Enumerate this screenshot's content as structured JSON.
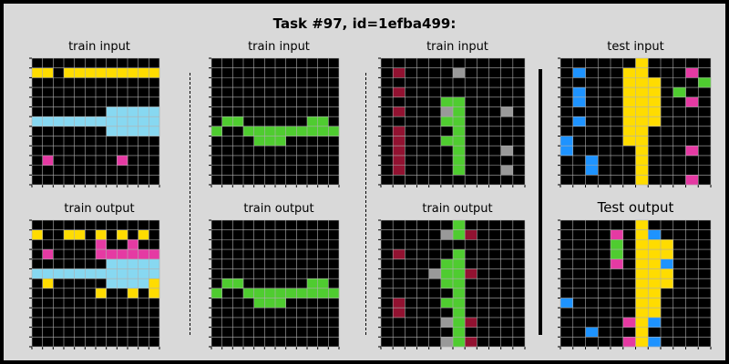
{
  "title": "Task #97, id=1efba499:",
  "colors": {
    "0": "#000000",
    "1": "#1E93FF",
    "2": "#F93C31",
    "3": "#4FCC30",
    "4": "#FFDC00",
    "5": "#999999",
    "6": "#E53AA3",
    "7": "#FF851B",
    "8": "#87D8F1",
    "9": "#921231",
    "grid_line": "#b0b0b0",
    "background": "#d9d9d9"
  },
  "panels": [
    {
      "label": "train input",
      "rows": [
        "000000000000",
        "440444444444",
        "000000000000",
        "000000000000",
        "000000000000",
        "000000088888",
        "888888888888",
        "000000088888",
        "000000000000",
        "000000000000",
        "060000006000",
        "000000000000",
        "000000000000"
      ]
    },
    {
      "label": "train input",
      "rows": [
        "000000000000",
        "000000000000",
        "000000000000",
        "000000000000",
        "000000000000",
        "000000000000",
        "033000000330",
        "300333333333",
        "000033300000",
        "000000000000",
        "000000000000",
        "000000000000",
        "000000000000"
      ]
    },
    {
      "label": "train input",
      "rows": [
        "000000000000",
        "090000500000",
        "000000000000",
        "090000000000",
        "000003300000",
        "090005300050",
        "000003300000",
        "090000300000",
        "090003300000",
        "090000300050",
        "090000300000",
        "090000300050",
        "000000000000"
      ]
    },
    {
      "label": "test input",
      "rows": [
        "000000400000",
        "010004400060",
        "000004440003",
        "010004440300",
        "010004440060",
        "000004440000",
        "010004440000",
        "000004400000",
        "100004400000",
        "100000400060",
        "001000400000",
        "001000400000",
        "000000400060"
      ]
    },
    {
      "label": "train output",
      "rows": [
        "000000000000",
        "400440404040",
        "000000600600",
        "060000666666",
        "000000088888",
        "888888888888",
        "040000088884",
        "000000400404",
        "000000000000",
        "000000000000",
        "000000000000",
        "000000000000",
        "000000000000"
      ]
    },
    {
      "label": "train output",
      "rows": [
        "000000000000",
        "000000000000",
        "000000000000",
        "000000000000",
        "000000000000",
        "000000000000",
        "033000000330",
        "300333333333",
        "000033300000",
        "000000000000",
        "000000000000",
        "000000000000",
        "000000000000"
      ]
    },
    {
      "label": "train output",
      "rows": [
        "000000300000",
        "000005390000",
        "000000000000",
        "090000300000",
        "000003300000",
        "000053390000",
        "000003300000",
        "000000300000",
        "090003300000",
        "090000300000",
        "000005390000",
        "000000300000",
        "000005390000"
      ]
    },
    {
      "label": "Test output",
      "rows": [
        "000000400000",
        "000060410000",
        "000030444000",
        "000030444000",
        "000060441000",
        "000000444000",
        "000000444000",
        "000000440000",
        "100000440000",
        "000000440000",
        "000006410000",
        "001000400000",
        "000006410000"
      ]
    }
  ]
}
